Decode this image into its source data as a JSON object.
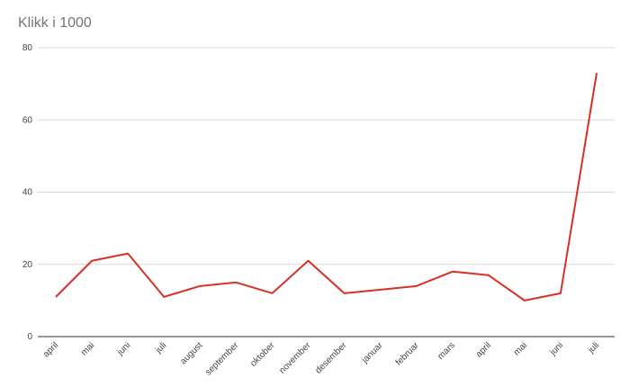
{
  "chart_data": {
    "type": "line",
    "title": "Klikk i 1000",
    "categories": [
      "april",
      "mai",
      "juni",
      "juli",
      "august",
      "september",
      "oktober",
      "november",
      "desember",
      "januar",
      "februar",
      "mars",
      "april",
      "mai",
      "juni",
      "juli"
    ],
    "series": [
      {
        "name": "Klikk",
        "color": "#d93025",
        "values": [
          11,
          21,
          23,
          11,
          14,
          15,
          12,
          21,
          12,
          13,
          14,
          18,
          17,
          10,
          12,
          73
        ]
      }
    ],
    "ylim": [
      0,
      80
    ],
    "yticks": [
      0,
      20,
      40,
      60,
      80
    ],
    "grid": true
  }
}
